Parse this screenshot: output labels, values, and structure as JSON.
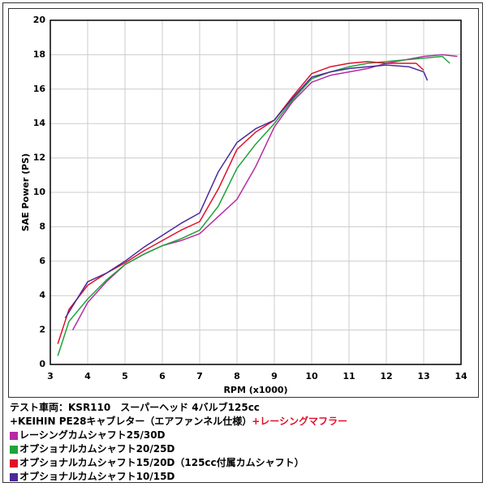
{
  "caption": {
    "line1": "テスト車両：KSR110　スーパーヘッド 4バルブ125cc",
    "line2": "+KEIHIN PE28キャブレター（エアファンネル仕様）",
    "highlight": "+レーシングマフラー"
  },
  "chart_data": {
    "type": "line",
    "x_label": "RPM (x1000)",
    "y_label": "SAE Power (PS)",
    "xlim": [
      3,
      14
    ],
    "xticks": [
      3,
      4,
      5,
      6,
      7,
      8,
      9,
      10,
      11,
      12,
      13,
      14
    ],
    "ylim": [
      0,
      20
    ],
    "yticks": [
      0,
      2,
      4,
      6,
      8,
      10,
      12,
      14,
      16,
      18,
      20
    ],
    "grid": true,
    "series": [
      {
        "name": "レーシングカムシャフト25/30D",
        "color": "#b52ba6",
        "x": [
          3.6,
          4,
          4.5,
          5,
          5.5,
          6,
          6.5,
          7,
          7.5,
          8,
          8.5,
          9,
          9.5,
          10,
          10.5,
          11,
          11.5,
          12,
          12.5,
          13,
          13.5,
          13.9
        ],
        "values": [
          2.0,
          3.6,
          4.8,
          5.8,
          6.4,
          6.9,
          7.2,
          7.6,
          8.6,
          9.6,
          11.5,
          13.8,
          15.3,
          16.4,
          16.8,
          17.0,
          17.2,
          17.5,
          17.7,
          17.9,
          18.0,
          17.9
        ]
      },
      {
        "name": "オプショナルカムシャフト20/25D",
        "color": "#1fa33a",
        "x": [
          3.2,
          3.5,
          4,
          4.5,
          5,
          5.5,
          6,
          6.5,
          7,
          7.5,
          8,
          8.5,
          9,
          9.5,
          10,
          10.5,
          11,
          11.5,
          12,
          12.5,
          13,
          13.5,
          13.7
        ],
        "values": [
          0.5,
          2.5,
          3.8,
          4.9,
          5.8,
          6.4,
          6.9,
          7.3,
          7.8,
          9.2,
          11.4,
          12.8,
          14.0,
          15.4,
          16.6,
          17.0,
          17.3,
          17.5,
          17.6,
          17.7,
          17.8,
          17.9,
          17.5
        ]
      },
      {
        "name": "オプショナルカムシャフト15/20D（125cc付属カムシャフト）",
        "color": "#e0102a",
        "x": [
          3.2,
          3.5,
          4,
          4.5,
          5,
          5.5,
          6,
          6.5,
          7,
          7.5,
          8,
          8.5,
          9,
          9.5,
          10,
          10.5,
          11,
          11.5,
          12,
          12.5,
          12.8,
          13
        ],
        "values": [
          1.2,
          3.2,
          4.6,
          5.3,
          5.9,
          6.6,
          7.2,
          7.8,
          8.3,
          10.2,
          12.5,
          13.5,
          14.2,
          15.6,
          16.9,
          17.3,
          17.5,
          17.6,
          17.5,
          17.5,
          17.5,
          17.1
        ]
      },
      {
        "name": "オプショナルカムシャフト10/15D",
        "color": "#4a2a9a",
        "x": [
          3.4,
          4,
          4.5,
          5,
          5.5,
          6,
          6.5,
          7,
          7.5,
          8,
          8.5,
          9,
          9.5,
          10,
          10.5,
          11,
          11.5,
          12,
          12.6,
          13,
          13.1
        ],
        "values": [
          2.7,
          4.8,
          5.3,
          6.0,
          6.8,
          7.5,
          8.2,
          8.8,
          11.2,
          12.9,
          13.7,
          14.2,
          15.5,
          16.7,
          17.0,
          17.2,
          17.3,
          17.4,
          17.3,
          17.0,
          16.5
        ]
      }
    ]
  }
}
